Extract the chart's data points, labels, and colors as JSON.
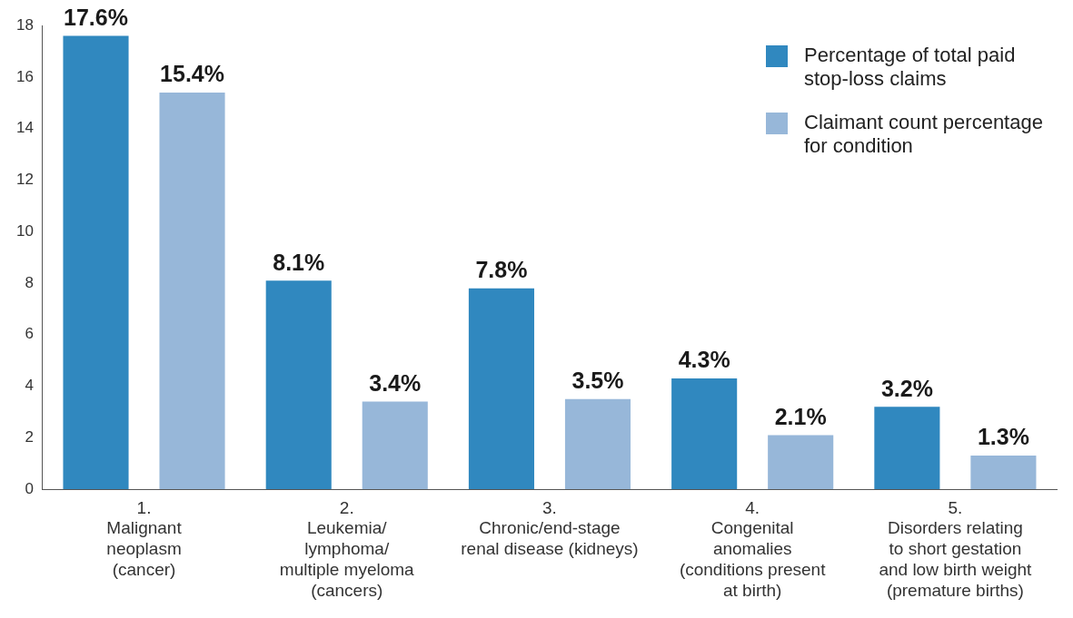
{
  "chart_data": {
    "type": "bar",
    "categories": [
      "1.\nMalignant\nneoplasm\n(cancer)",
      "2.\nLeukemia/\nlymphoma/\nmultiple myeloma\n(cancers)",
      "3.\nChronic/end-stage\nrenal disease (kidneys)",
      "4.\nCongenital\nanomalies\n(conditions present\nat birth)",
      "5.\nDisorders relating\nto short gestation\nand low birth weight\n(premature births)"
    ],
    "series": [
      {
        "name": "Percentage of total paid stop-loss claims",
        "color": "#3088bf",
        "values": [
          17.6,
          8.1,
          7.8,
          4.3,
          3.2
        ],
        "value_labels": [
          "17.6%",
          "8.1%",
          "7.8%",
          "4.3%",
          "3.2%"
        ]
      },
      {
        "name": "Claimant count percentage for condition",
        "color": "#97b7d9",
        "values": [
          15.4,
          3.4,
          3.5,
          2.1,
          1.3
        ],
        "value_labels": [
          "15.4%",
          "3.4%",
          "3.5%",
          "2.1%",
          "1.3%"
        ]
      }
    ],
    "ylim": [
      0,
      18
    ],
    "yticks": [
      0,
      2,
      4,
      6,
      8,
      10,
      12,
      14,
      16,
      18
    ],
    "grid": false,
    "legend": "top right"
  }
}
